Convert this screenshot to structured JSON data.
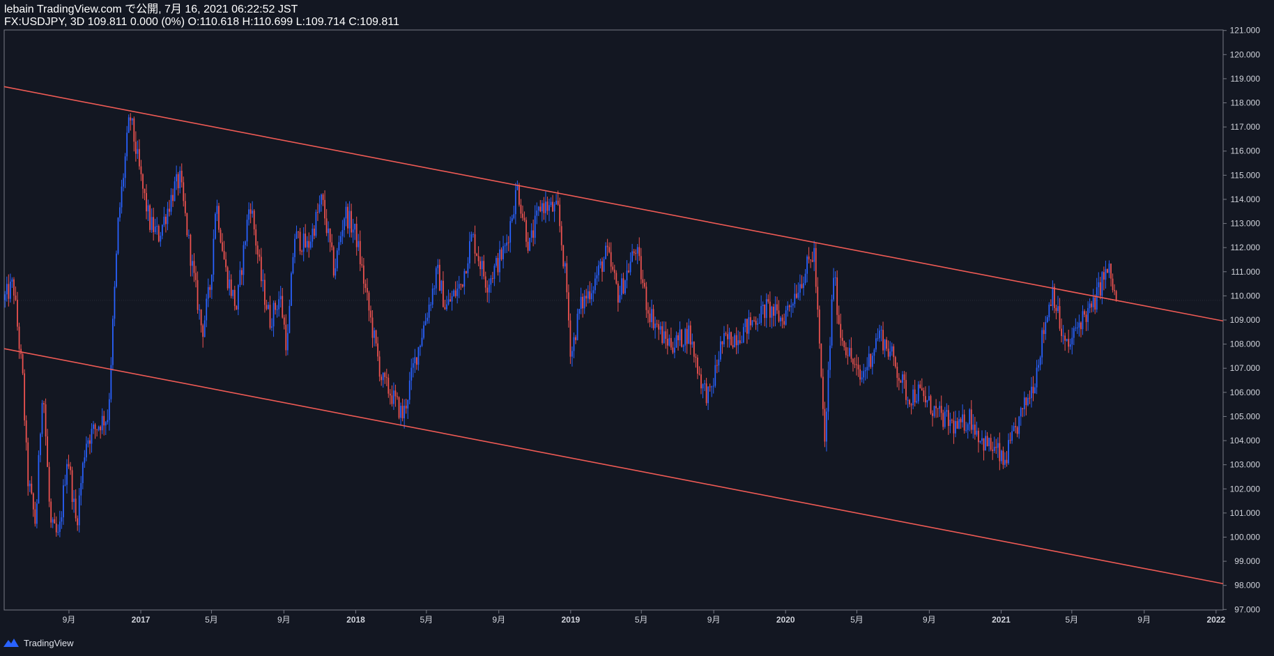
{
  "header": {
    "line1": "lebain TradingView.com で公開, 7月 16, 2021 06:22:52 JST",
    "line2": "FX:USDJPY, 3D 109.811 0.000 (0%) O:110.618 H:110.699 L:109.714 C:109.811"
  },
  "footer": {
    "brand": "TradingView"
  },
  "colors": {
    "background": "#131722",
    "up_candle": "#2962ff",
    "down_candle": "#ef5350",
    "trendline": "#f05b55",
    "axis_text": "#d1d4dc",
    "axis_line": "#787b86"
  },
  "chart_data": {
    "type": "candlestick",
    "symbol": "FX:USDJPY",
    "timeframe": "3D",
    "ylim": [
      97,
      121
    ],
    "y_ticks": [
      "97.000",
      "98.000",
      "99.000",
      "100.000",
      "101.000",
      "102.000",
      "103.000",
      "104.000",
      "105.000",
      "106.000",
      "107.000",
      "108.000",
      "109.000",
      "110.000",
      "111.000",
      "112.000",
      "113.000",
      "114.000",
      "115.000",
      "116.000",
      "117.000",
      "118.000",
      "119.000",
      "120.000",
      "121.000"
    ],
    "x_ticks": [
      {
        "label": "9月",
        "date": "2016-09-01"
      },
      {
        "label": "2017",
        "date": "2017-01-01"
      },
      {
        "label": "5月",
        "date": "2017-05-01"
      },
      {
        "label": "9月",
        "date": "2017-09-01"
      },
      {
        "label": "2018",
        "date": "2018-01-01"
      },
      {
        "label": "5月",
        "date": "2018-05-01"
      },
      {
        "label": "9月",
        "date": "2018-09-01"
      },
      {
        "label": "2019",
        "date": "2019-01-01"
      },
      {
        "label": "5月",
        "date": "2019-05-01"
      },
      {
        "label": "9月",
        "date": "2019-09-01"
      },
      {
        "label": "2020",
        "date": "2020-01-01"
      },
      {
        "label": "5月",
        "date": "2020-05-01"
      },
      {
        "label": "9月",
        "date": "2020-09-01"
      },
      {
        "label": "2021",
        "date": "2021-01-01"
      },
      {
        "label": "5月",
        "date": "2021-05-01"
      },
      {
        "label": "9月",
        "date": "2021-09-01"
      },
      {
        "label": "2022",
        "date": "2022-01-01"
      }
    ],
    "price_path": [
      [
        "2016-05-14",
        109.8
      ],
      [
        "2016-05-31",
        110.5
      ],
      [
        "2016-06-16",
        106.5
      ],
      [
        "2016-06-24",
        102.5
      ],
      [
        "2016-07-08",
        100.5
      ],
      [
        "2016-07-20",
        106.5
      ],
      [
        "2016-08-02",
        100.5
      ],
      [
        "2016-08-16",
        99.9
      ],
      [
        "2016-08-31",
        103.5
      ],
      [
        "2016-09-15",
        100.5
      ],
      [
        "2016-10-01",
        104.0
      ],
      [
        "2016-10-27",
        104.8
      ],
      [
        "2016-11-08",
        105.0
      ],
      [
        "2016-11-25",
        113.0
      ],
      [
        "2016-12-15",
        117.5
      ],
      [
        "2017-01-05",
        114.5
      ],
      [
        "2017-01-18",
        113.0
      ],
      [
        "2017-02-02",
        112.5
      ],
      [
        "2017-03-01",
        114.5
      ],
      [
        "2017-03-10",
        114.8
      ],
      [
        "2017-04-01",
        111.0
      ],
      [
        "2017-04-17",
        108.5
      ],
      [
        "2017-05-01",
        110.5
      ],
      [
        "2017-05-10",
        114.0
      ],
      [
        "2017-05-27",
        111.0
      ],
      [
        "2017-06-14",
        109.5
      ],
      [
        "2017-07-07",
        114.0
      ],
      [
        "2017-07-27",
        110.5
      ],
      [
        "2017-08-10",
        109.0
      ],
      [
        "2017-08-27",
        110.0
      ],
      [
        "2017-09-08",
        107.8
      ],
      [
        "2017-09-20",
        112.5
      ],
      [
        "2017-10-13",
        112.0
      ],
      [
        "2017-11-06",
        114.0
      ],
      [
        "2017-11-27",
        111.0
      ],
      [
        "2017-12-15",
        113.5
      ],
      [
        "2018-01-03",
        112.5
      ],
      [
        "2018-01-24",
        109.5
      ],
      [
        "2018-02-16",
        106.5
      ],
      [
        "2018-03-02",
        106.0
      ],
      [
        "2018-03-24",
        105.0
      ],
      [
        "2018-04-10",
        107.0
      ],
      [
        "2018-05-21",
        111.0
      ],
      [
        "2018-06-04",
        109.5
      ],
      [
        "2018-07-01",
        110.5
      ],
      [
        "2018-07-19",
        112.5
      ],
      [
        "2018-08-13",
        110.5
      ],
      [
        "2018-09-14",
        112.0
      ],
      [
        "2018-09-28",
        113.8
      ],
      [
        "2018-10-04",
        114.5
      ],
      [
        "2018-10-24",
        112.0
      ],
      [
        "2018-11-13",
        113.8
      ],
      [
        "2018-12-12",
        113.5
      ],
      [
        "2018-12-26",
        110.5
      ],
      [
        "2019-01-03",
        107.5
      ],
      [
        "2019-01-18",
        109.5
      ],
      [
        "2019-02-10",
        110.5
      ],
      [
        "2019-03-05",
        111.8
      ],
      [
        "2019-03-25",
        110.0
      ],
      [
        "2019-04-23",
        112.0
      ],
      [
        "2019-05-13",
        109.5
      ],
      [
        "2019-06-10",
        108.2
      ],
      [
        "2019-06-27",
        108.0
      ],
      [
        "2019-07-22",
        108.5
      ],
      [
        "2019-08-15",
        106.2
      ],
      [
        "2019-08-27",
        105.8
      ],
      [
        "2019-09-15",
        108.0
      ],
      [
        "2019-10-20",
        108.5
      ],
      [
        "2019-11-10",
        109.0
      ],
      [
        "2019-12-02",
        109.5
      ],
      [
        "2019-12-28",
        109.0
      ],
      [
        "2020-01-16",
        110.0
      ],
      [
        "2020-02-20",
        111.8
      ],
      [
        "2020-03-09",
        103.8
      ],
      [
        "2020-03-24",
        111.0
      ],
      [
        "2020-04-04",
        108.5
      ],
      [
        "2020-05-08",
        106.5
      ],
      [
        "2020-05-26",
        107.5
      ],
      [
        "2020-06-09",
        108.5
      ],
      [
        "2020-07-01",
        107.5
      ],
      [
        "2020-07-28",
        105.8
      ],
      [
        "2020-08-16",
        106.0
      ],
      [
        "2020-09-20",
        105.0
      ],
      [
        "2020-10-23",
        104.5
      ],
      [
        "2020-11-10",
        105.0
      ],
      [
        "2020-12-01",
        104.0
      ],
      [
        "2020-12-28",
        103.5
      ],
      [
        "2021-01-06",
        103.0
      ],
      [
        "2021-01-18",
        103.8
      ],
      [
        "2021-02-05",
        105.0
      ],
      [
        "2021-02-28",
        106.5
      ],
      [
        "2021-03-15",
        108.5
      ],
      [
        "2021-03-31",
        110.3
      ],
      [
        "2021-04-17",
        108.2
      ],
      [
        "2021-04-26",
        107.8
      ],
      [
        "2021-05-17",
        109.0
      ],
      [
        "2021-06-07",
        109.5
      ],
      [
        "2021-06-25",
        110.8
      ],
      [
        "2021-07-05",
        111.0
      ],
      [
        "2021-07-16",
        109.811
      ]
    ],
    "trendlines": [
      {
        "name": "upper",
        "points": [
          [
            "2016-05-14",
            118.67
          ],
          [
            "2022-01-13",
            108.96
          ]
        ]
      },
      {
        "name": "lower",
        "points": [
          [
            "2016-05-14",
            107.81
          ],
          [
            "2022-01-13",
            98.07
          ]
        ]
      }
    ],
    "last_close": 109.811
  }
}
